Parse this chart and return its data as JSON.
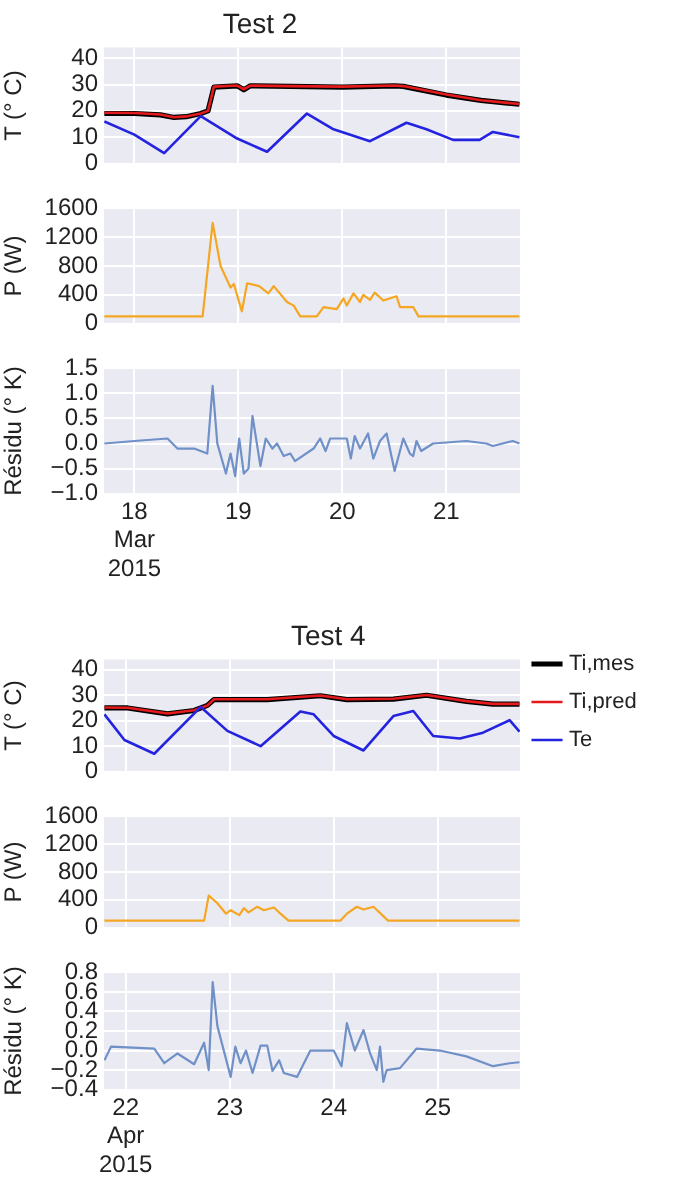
{
  "chart_data": [
    {
      "type": "line",
      "title": "Test 2",
      "ylabel": "T (° C)",
      "xlim": [
        "2015-03-17T17:00",
        "2015-03-21T17:00"
      ],
      "xticks": [
        {
          "value": "2015-03-18",
          "label": null
        },
        {
          "value": "2015-03-19",
          "label": null
        },
        {
          "value": "2015-03-20",
          "label": null
        },
        {
          "value": "2015-03-21",
          "label": null
        }
      ],
      "ylim": [
        0,
        44
      ],
      "yticks": [
        0,
        10,
        20,
        30,
        40
      ],
      "tick_labels": "y",
      "grid": true,
      "series": [
        {
          "color": "#000000",
          "x": [
            "2015-03-17T17:05",
            "2015-03-18T00:00",
            "2015-03-18T06:00",
            "2015-03-18T09:11",
            "2015-03-18T12:00",
            "2015-03-18T15:19",
            "2015-03-18T17:00",
            "2015-03-18T18:22",
            "2015-03-18T23:44",
            "2015-03-19T01:16",
            "2015-03-19T02:48",
            "2015-03-19T12:00",
            "2015-03-20T00:00",
            "2015-03-20T12:00",
            "2015-03-20T14:04",
            "2015-03-21T00:00",
            "2015-03-21T08:00",
            "2015-03-21T16:52"
          ],
          "values": [
            19,
            19,
            18.5,
            17.5,
            17.8,
            19,
            20,
            29,
            29.5,
            28,
            29.5,
            29.3,
            29,
            29.5,
            29.3,
            26,
            24,
            22.5
          ]
        },
        {
          "color": "#e41a1c",
          "x": [
            "2015-03-17T17:05",
            "2015-03-18T00:00",
            "2015-03-18T06:00",
            "2015-03-18T09:11",
            "2015-03-18T12:00",
            "2015-03-18T15:19",
            "2015-03-18T17:00",
            "2015-03-18T18:22",
            "2015-03-18T23:44",
            "2015-03-19T01:16",
            "2015-03-19T02:48",
            "2015-03-19T12:00",
            "2015-03-20T00:00",
            "2015-03-20T12:00",
            "2015-03-20T14:04",
            "2015-03-21T00:00",
            "2015-03-21T08:00",
            "2015-03-21T16:52"
          ],
          "values": [
            19.3,
            19.2,
            18.6,
            17.6,
            17.9,
            19,
            20,
            29.2,
            29.6,
            28.2,
            29.6,
            29.4,
            29.2,
            29.6,
            29.4,
            26.2,
            24,
            22.6
          ]
        },
        {
          "color": "#2424e0",
          "x": [
            "2015-03-17T17:05",
            "2015-03-18T00:00",
            "2015-03-18T06:53",
            "2015-03-18T15:19",
            "2015-03-18T23:44",
            "2015-03-19T06:38",
            "2015-03-19T15:50",
            "2015-03-19T21:58",
            "2015-03-20T06:23",
            "2015-03-20T14:49",
            "2015-03-20T19:25",
            "2015-03-21T01:33",
            "2015-03-21T07:41",
            "2015-03-21T10:44",
            "2015-03-21T16:52"
          ],
          "values": [
            16,
            11,
            4,
            18,
            9.5,
            4.5,
            19,
            13,
            8.5,
            15.5,
            13,
            9,
            9,
            12,
            10
          ]
        }
      ]
    },
    {
      "type": "line",
      "ylabel": "P (W)",
      "xlim": [
        "2015-03-17T17:00",
        "2015-03-21T17:00"
      ],
      "xticks": [
        {
          "value": "2015-03-18",
          "label": null
        },
        {
          "value": "2015-03-19",
          "label": null
        },
        {
          "value": "2015-03-20",
          "label": null
        },
        {
          "value": "2015-03-21",
          "label": null
        }
      ],
      "ylim": [
        0,
        1600
      ],
      "yticks": [
        0,
        400,
        800,
        1200,
        1600
      ],
      "tick_labels": "y",
      "grid": true,
      "series": [
        {
          "color": "#f5a623",
          "x": [
            "2015-03-17T17:05",
            "2015-03-18T15:46",
            "2015-03-18T18:04",
            "2015-03-18T19:54",
            "2015-03-18T22:12",
            "2015-03-18T22:58",
            "2015-03-19T00:49",
            "2015-03-19T02:02",
            "2015-03-19T04:48",
            "2015-03-19T06:56",
            "2015-03-19T08:10",
            "2015-03-19T11:14",
            "2015-03-19T12:46",
            "2015-03-19T14:18",
            "2015-03-19T18:07",
            "2015-03-19T19:39",
            "2015-03-19T22:43",
            "2015-03-20T00:16",
            "2015-03-20T01:02",
            "2015-03-20T02:34",
            "2015-03-20T04:05",
            "2015-03-20T04:51",
            "2015-03-20T06:23",
            "2015-03-20T07:28",
            "2015-03-20T09:27",
            "2015-03-20T12:31",
            "2015-03-20T13:18",
            "2015-03-20T16:21",
            "2015-03-20T17:34",
            "2015-03-21T16:52"
          ],
          "values": [
            100,
            100,
            1400,
            800,
            500,
            550,
            170,
            560,
            520,
            420,
            520,
            300,
            250,
            100,
            100,
            230,
            200,
            350,
            250,
            420,
            300,
            400,
            330,
            430,
            320,
            380,
            230,
            230,
            100,
            100
          ]
        }
      ]
    },
    {
      "type": "line",
      "ylabel": "Résidu (° K)",
      "xlim": [
        "2015-03-17T17:00",
        "2015-03-21T17:00"
      ],
      "xticks": [
        {
          "value": "2015-03-18",
          "label": "18 Mar 2015"
        },
        {
          "value": "2015-03-19",
          "label": "19"
        },
        {
          "value": "2015-03-20",
          "label": "20"
        },
        {
          "value": "2015-03-21",
          "label": "21"
        }
      ],
      "ylim": [
        -1,
        1.5
      ],
      "yticks": [
        {
          "value": -1,
          "label": "−1.0"
        },
        {
          "value": -0.5,
          "label": "−0.5"
        },
        {
          "value": 0,
          "label": "0.0"
        },
        {
          "value": 0.5,
          "label": "0.5"
        },
        {
          "value": 1,
          "label": "1.0"
        },
        {
          "value": 1.5,
          "label": "1.5"
        }
      ],
      "grid": true,
      "series": [
        {
          "color": "#7090c8",
          "x": [
            "2015-03-17T17:05",
            "2015-03-18T00:00",
            "2015-03-18T07:39",
            "2015-03-18T09:56",
            "2015-03-18T13:47",
            "2015-03-18T16:50",
            "2015-03-18T18:04",
            "2015-03-18T19:09",
            "2015-03-18T21:08",
            "2015-03-18T22:12",
            "2015-03-18T23:16",
            "2015-03-19T00:12",
            "2015-03-19T01:16",
            "2015-03-19T02:21",
            "2015-03-19T03:16",
            "2015-03-19T05:06",
            "2015-03-19T06:20",
            "2015-03-19T07:52",
            "2015-03-19T08:56",
            "2015-03-19T10:28",
            "2015-03-19T12:00",
            "2015-03-19T13:04",
            "2015-03-19T17:22",
            "2015-03-19T18:53",
            "2015-03-19T20:07",
            "2015-03-19T21:11",
            "2015-03-20T01:02",
            "2015-03-20T01:57",
            "2015-03-20T02:51",
            "2015-03-20T04:05",
            "2015-03-20T05:56",
            "2015-03-20T07:09",
            "2015-03-20T08:41",
            "2015-03-20T10:13",
            "2015-03-20T12:04",
            "2015-03-20T14:04",
            "2015-03-20T15:35",
            "2015-03-20T16:21",
            "2015-03-20T17:07",
            "2015-03-20T18:12",
            "2015-03-20T20:57",
            "2015-03-21T04:36",
            "2015-03-21T09:13",
            "2015-03-21T10:44",
            "2015-03-21T15:20",
            "2015-03-21T16:52"
          ],
          "values": [
            0,
            0.05,
            0.1,
            -0.1,
            -0.1,
            -0.2,
            1.15,
            0,
            -0.6,
            -0.2,
            -0.65,
            0.1,
            -0.6,
            -0.5,
            0.55,
            -0.45,
            0.1,
            -0.1,
            0,
            -0.25,
            -0.2,
            -0.35,
            -0.1,
            0.1,
            -0.15,
            0.1,
            0.1,
            -0.3,
            0.15,
            -0.1,
            0.2,
            -0.3,
            0.05,
            0.2,
            -0.55,
            0.1,
            -0.2,
            -0.25,
            0.05,
            -0.15,
            0,
            0.05,
            0,
            -0.05,
            0.05,
            0
          ]
        }
      ]
    },
    {
      "type": "line",
      "title": "Test 4",
      "ylabel": "T (° C)",
      "xlim": [
        "2015-04-21T19:00",
        "2015-04-25T19:00"
      ],
      "xticks": [
        {
          "value": "2015-04-22",
          "label": null
        },
        {
          "value": "2015-04-23",
          "label": null
        },
        {
          "value": "2015-04-24",
          "label": null
        },
        {
          "value": "2015-04-25",
          "label": null
        }
      ],
      "ylim": [
        0,
        44
      ],
      "yticks": [
        0,
        10,
        20,
        30,
        40
      ],
      "tick_labels": "y",
      "grid": true,
      "legend": "right",
      "series": [
        {
          "name": "Ti,mes",
          "color": "#000000",
          "x": [
            "2015-04-21T19:06",
            "2015-04-22T00:28",
            "2015-04-22T09:40",
            "2015-04-22T15:48",
            "2015-04-22T18:52",
            "2015-04-22T20:24",
            "2015-04-23T08:40",
            "2015-04-23T20:55",
            "2015-04-24T03:03",
            "2015-04-24T13:47",
            "2015-04-24T21:26",
            "2015-04-25T06:38",
            "2015-04-25T12:46",
            "2015-04-25T18:53"
          ],
          "values": [
            25,
            25,
            22.7,
            24,
            26,
            28.3,
            28.3,
            29.8,
            28.3,
            28.5,
            30,
            27.6,
            26.5,
            26.5
          ]
        },
        {
          "name": "Ti,pred",
          "color": "#e41a1c",
          "x": [
            "2015-04-21T19:06",
            "2015-04-22T00:28",
            "2015-04-22T09:40",
            "2015-04-22T15:48",
            "2015-04-22T18:52",
            "2015-04-22T20:24",
            "2015-04-23T08:40",
            "2015-04-23T20:55",
            "2015-04-24T03:03",
            "2015-04-24T13:47",
            "2015-04-24T21:26",
            "2015-04-25T06:38",
            "2015-04-25T12:46",
            "2015-04-25T18:53"
          ],
          "values": [
            25.2,
            25.1,
            22.8,
            24.1,
            26,
            28.4,
            28.4,
            29.9,
            28.4,
            28.6,
            30.1,
            27.7,
            26.6,
            26.6
          ]
        },
        {
          "name": "Te",
          "color": "#2424e0",
          "x": [
            "2015-04-21T19:06",
            "2015-04-21T23:43",
            "2015-04-22T06:36",
            "2015-04-22T17:20",
            "2015-04-22T23:28",
            "2015-04-23T07:08",
            "2015-04-23T16:19",
            "2015-04-23T19:23",
            "2015-04-24T00:00",
            "2015-04-24T06:53",
            "2015-04-24T13:47",
            "2015-04-24T18:23",
            "2015-04-24T22:58",
            "2015-04-25T05:06",
            "2015-04-25T10:28",
            "2015-04-25T16:36",
            "2015-04-25T18:53"
          ],
          "values": [
            22.5,
            12.4,
            7,
            25.4,
            16,
            10,
            23.6,
            22.5,
            14,
            8.3,
            21.8,
            23.8,
            14,
            13,
            15.3,
            20.2,
            15.7
          ]
        }
      ]
    },
    {
      "type": "line",
      "ylabel": "P (W)",
      "xlim": [
        "2015-04-21T19:00",
        "2015-04-25T19:00"
      ],
      "xticks": [
        {
          "value": "2015-04-22",
          "label": null
        },
        {
          "value": "2015-04-23",
          "label": null
        },
        {
          "value": "2015-04-24",
          "label": null
        },
        {
          "value": "2015-04-25",
          "label": null
        }
      ],
      "ylim": [
        0,
        1600
      ],
      "yticks": [
        0,
        400,
        800,
        1200,
        1600
      ],
      "tick_labels": "y",
      "grid": true,
      "series": [
        {
          "color": "#f5a623",
          "x": [
            "2015-04-21T19:06",
            "2015-04-22T18:06",
            "2015-04-22T19:10",
            "2015-04-22T21:10",
            "2015-04-22T23:10",
            "2015-04-23T00:14",
            "2015-04-23T02:13",
            "2015-04-23T03:17",
            "2015-04-23T04:22",
            "2015-04-23T06:21",
            "2015-04-23T07:53",
            "2015-04-23T10:12",
            "2015-04-23T11:44",
            "2015-04-23T13:34",
            "2015-04-24T01:31",
            "2015-04-24T03:03",
            "2015-04-24T05:21",
            "2015-04-24T06:53",
            "2015-04-24T09:11",
            "2015-04-24T12:33",
            "2015-04-25T18:53"
          ],
          "values": [
            100,
            100,
            460,
            350,
            200,
            250,
            180,
            280,
            220,
            300,
            250,
            290,
            200,
            100,
            100,
            200,
            300,
            260,
            300,
            100,
            100
          ]
        }
      ]
    },
    {
      "type": "line",
      "ylabel": "Résidu (° K)",
      "xlim": [
        "2015-04-21T19:00",
        "2015-04-25T19:00"
      ],
      "xticks": [
        {
          "value": "2015-04-22",
          "label": "22 Apr 2015"
        },
        {
          "value": "2015-04-23",
          "label": "23"
        },
        {
          "value": "2015-04-24",
          "label": "24"
        },
        {
          "value": "2015-04-25",
          "label": "25"
        }
      ],
      "ylim": [
        -0.4,
        0.8
      ],
      "yticks": [
        {
          "value": -0.4,
          "label": "−0.4"
        },
        {
          "value": -0.2,
          "label": "−0.2"
        },
        {
          "value": 0,
          "label": "0.0"
        },
        0.2,
        0.4,
        0.6,
        0.8
      ],
      "grid": true,
      "series": [
        {
          "color": "#7090c8",
          "x": [
            "2015-04-21T19:06",
            "2015-04-21T20:38",
            "2015-04-22T06:36",
            "2015-04-22T08:54",
            "2015-04-22T11:58",
            "2015-04-22T15:48",
            "2015-04-22T18:06",
            "2015-04-22T19:10",
            "2015-04-22T20:05",
            "2015-04-22T21:10",
            "2015-04-23T00:14",
            "2015-04-23T01:18",
            "2015-04-23T02:31",
            "2015-04-23T03:46",
            "2015-04-23T05:17",
            "2015-04-23T07:08",
            "2015-04-23T08:40",
            "2015-04-23T09:53",
            "2015-04-23T11:25",
            "2015-04-23T12:29",
            "2015-04-23T15:33",
            "2015-04-23T18:37",
            "2015-04-24T00:00",
            "2015-04-24T01:49",
            "2015-04-24T03:03",
            "2015-04-24T04:53",
            "2015-04-24T06:53",
            "2015-04-24T08:25",
            "2015-04-24T09:57",
            "2015-04-24T10:42",
            "2015-04-24T11:28",
            "2015-04-24T12:14",
            "2015-04-24T15:18",
            "2015-04-24T19:08",
            "2015-04-25T00:30",
            "2015-04-25T06:38",
            "2015-04-25T12:46",
            "2015-04-25T16:36",
            "2015-04-25T18:53"
          ],
          "values": [
            -0.1,
            0.04,
            0.02,
            -0.13,
            -0.03,
            -0.14,
            0.08,
            -0.2,
            0.7,
            0.25,
            -0.27,
            0.04,
            -0.13,
            0,
            -0.23,
            0.05,
            0.05,
            -0.21,
            -0.1,
            -0.23,
            -0.27,
            0,
            0,
            -0.16,
            0.28,
            0,
            0.21,
            -0.03,
            -0.2,
            0.04,
            -0.32,
            -0.2,
            -0.18,
            0.02,
            0,
            -0.06,
            -0.16,
            -0.13,
            -0.12
          ]
        }
      ]
    }
  ]
}
